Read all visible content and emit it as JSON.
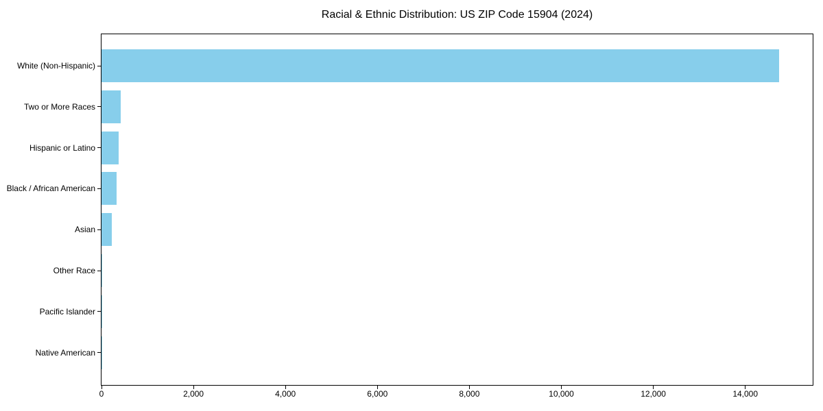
{
  "chart_data": {
    "type": "bar",
    "orientation": "horizontal",
    "title": "Racial & Ethnic Distribution: US ZIP Code 15904 (2024)",
    "categories": [
      "White (Non-Hispanic)",
      "Two or More Races",
      "Hispanic or Latino",
      "Black / African American",
      "Asian",
      "Other Race",
      "Pacific Islander",
      "Native American"
    ],
    "values": [
      14730,
      415,
      370,
      335,
      230,
      18,
      6,
      4
    ],
    "bar_color": "#87CEEB",
    "xlabel": "",
    "ylabel": "",
    "xlim": [
      0,
      15466
    ],
    "xticks": [
      {
        "value": 0,
        "label": "0"
      },
      {
        "value": 2000,
        "label": "2,000"
      },
      {
        "value": 4000,
        "label": "4,000"
      },
      {
        "value": 6000,
        "label": "6,000"
      },
      {
        "value": 8000,
        "label": "8,000"
      },
      {
        "value": 10000,
        "label": "10,000"
      },
      {
        "value": 12000,
        "label": "12,000"
      },
      {
        "value": 14000,
        "label": "14,000"
      }
    ],
    "grid": false,
    "legend": false,
    "background": "#ffffff",
    "frame_color": "#000000"
  }
}
